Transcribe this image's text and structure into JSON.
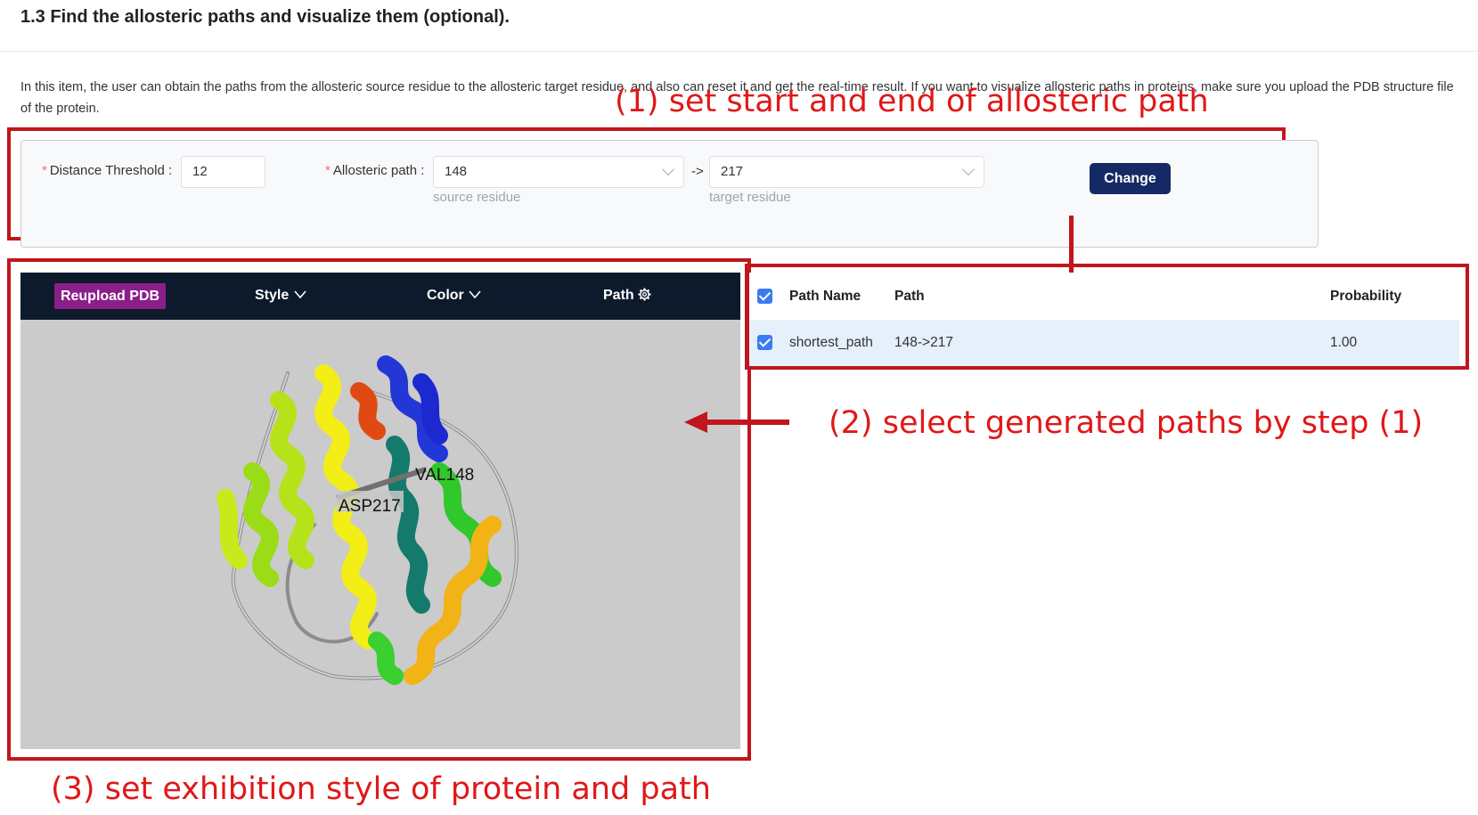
{
  "section": {
    "title": "1.3 Find the allosteric paths and visualize them (optional).",
    "description": "In this item, the user can obtain the paths from the allosteric source residue to the allosteric target residue, and also can reset it and get the real-time result. If you want to visualize allosteric paths in proteins, make sure you upload the PDB structure file of the protein."
  },
  "annotations": {
    "step1": "(1) set start and end  of allosteric path",
    "step2": "(2) select generated paths by step (1)",
    "step3": "(3) set exhibition style of protein and path",
    "color": "#e01818"
  },
  "form": {
    "distance_label": "Distance Threshold",
    "distance_value": "12",
    "path_label": "Allosteric path",
    "source_value": "148",
    "arrow_text": "->",
    "target_value": "217",
    "source_hint": "source residue",
    "target_hint": "target residue",
    "change_button": "Change",
    "button_color": "#142966"
  },
  "viewer": {
    "reupload_label": "Reupload PDB",
    "style_label": "Style",
    "color_label": "Color",
    "path_label": "Path",
    "residue_label_1": "VAL148",
    "residue_label_2": "ASP217",
    "toolbar_color": "#0d1a2c",
    "background_color": "#cbcbcb"
  },
  "table": {
    "headers": [
      "Path Name",
      "Path",
      "Probability"
    ],
    "rows": [
      {
        "name": "shortest_path",
        "path": "148->217",
        "probability": "1.00",
        "checked": true
      }
    ]
  }
}
